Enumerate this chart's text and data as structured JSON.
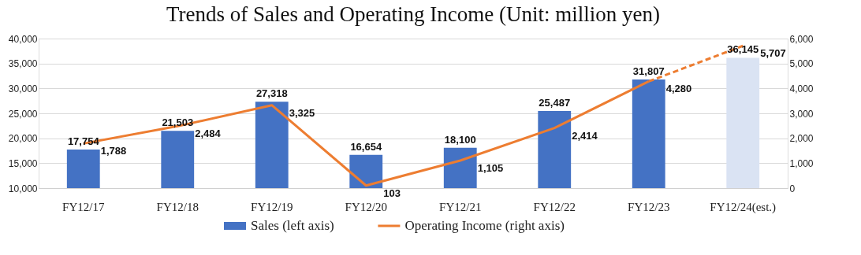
{
  "chart_data": {
    "type": "bar",
    "title": "Trends of Sales and Operating Income (Unit: million yen)",
    "categories": [
      "FY12/17",
      "FY12/18",
      "FY12/19",
      "FY12/20",
      "FY12/21",
      "FY12/22",
      "FY12/23",
      "FY12/24(est.)"
    ],
    "ylim": [
      10000,
      40000
    ],
    "yticks": [
      {
        "value": 10000,
        "label": "10,000"
      },
      {
        "value": 15000,
        "label": "15,000"
      },
      {
        "value": 20000,
        "label": "20,000"
      },
      {
        "value": 25000,
        "label": "25,000"
      },
      {
        "value": 30000,
        "label": "30,000"
      },
      {
        "value": 35000,
        "label": "35,000"
      },
      {
        "value": 40000,
        "label": "40,000"
      }
    ],
    "y2lim": [
      0,
      6000
    ],
    "y2ticks": [
      0,
      {
        "value": 1000,
        "label": "1,000"
      },
      {
        "value": 2000,
        "label": "2,000"
      },
      {
        "value": 3000,
        "label": "3,000"
      },
      {
        "value": 4000,
        "label": "4,000"
      },
      {
        "value": 5000,
        "label": "5,000"
      },
      {
        "value": 6000,
        "label": "6,000"
      }
    ],
    "grid": "y",
    "legend": "bottom",
    "series": [
      {
        "name": "Sales (left axis)",
        "color": "#4472c4",
        "colors": [
          "#4472c4",
          "#4472c4",
          "#4472c4",
          "#4472c4",
          "#4472c4",
          "#4472c4",
          "#4472c4",
          "#dae3f3"
        ],
        "values": [
          17754,
          21503,
          27318,
          16654,
          18100,
          25487,
          31807,
          36145
        ],
        "value_labels": [
          "17,754",
          "21,503",
          "27,318",
          "16,654",
          "18,100",
          "25,487",
          "31,807",
          "36,145"
        ]
      },
      {
        "name": "Operating Income (right axis)",
        "type": "line",
        "axis": "y2",
        "color": "#ed7d31",
        "line_style": "solid",
        "values": [
          1788,
          2484,
          3325,
          103,
          1105,
          2414,
          4280,
          null
        ],
        "value_labels": [
          "1,788",
          "2,484",
          "3,325",
          "103",
          "1,105",
          "2,414",
          "4,280",
          null
        ]
      },
      {
        "type": "line",
        "axis": "y2",
        "color": "#ed7d31",
        "line_style": "dashed",
        "values": [
          null,
          null,
          null,
          null,
          null,
          null,
          4280,
          5707
        ],
        "value_labels": [
          null,
          null,
          null,
          null,
          null,
          null,
          null,
          "5,707"
        ]
      }
    ]
  }
}
